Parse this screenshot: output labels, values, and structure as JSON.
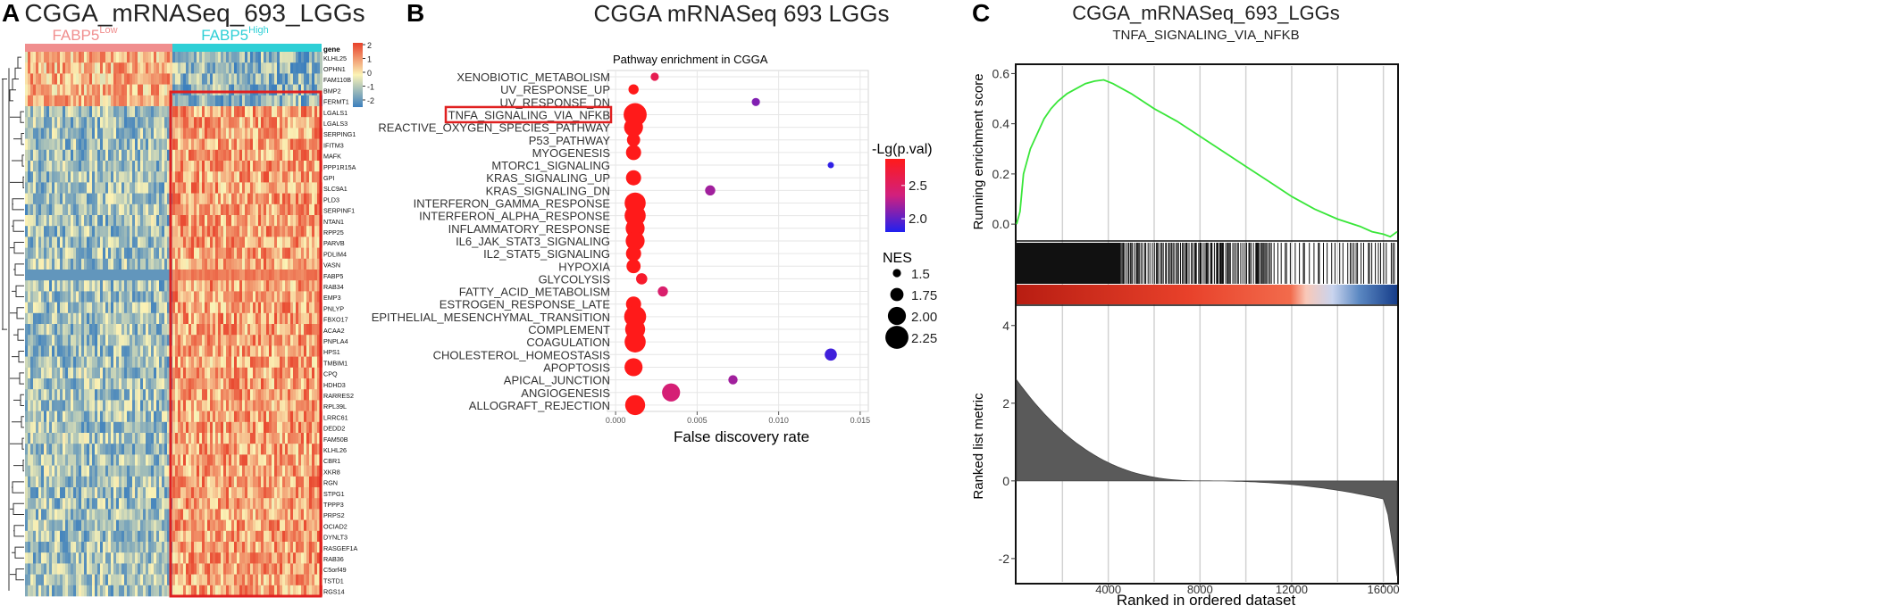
{
  "panels": {
    "A": {
      "letter": "A",
      "title": "CGGA_mRNASeq_693_LGGs",
      "groups": [
        {
          "label": "FABP5",
          "sup": "Low",
          "color": "#f08e8e"
        },
        {
          "label": "FABP5",
          "sup": "High",
          "color": "#2ecfd6"
        }
      ],
      "gene_header": "gene",
      "genes_top": [
        "KLHL25",
        "OPHN1",
        "FAM110B",
        "BMP2",
        "FERMT1"
      ],
      "genes_bottom": [
        "LGALS1",
        "LGALS3",
        "SERPING1",
        "IFITM3",
        "MAFK",
        "PPP1R15A",
        "GPI",
        "SLC9A1",
        "PLD3",
        "SERPINF1",
        "NTAN1",
        "RPP25",
        "PARVB",
        "PDLIM4",
        "VASN",
        "FABP5",
        "RAB34",
        "EMP3",
        "PNLYP",
        "FBXO17",
        "ACAA2",
        "PNPLA4",
        "HPS1",
        "TMBIM1",
        "CPQ",
        "HDHD3",
        "RARRES2",
        "RPL39L",
        "LRRC61",
        "DEDD2",
        "FAM50B",
        "KLHL26",
        "CBR1",
        "XKR8",
        "RGN",
        "STPG1",
        "TPPP3",
        "PRPS2",
        "OCIAD2",
        "DYNLT3",
        "RASGEF1A",
        "RAB36",
        "C5orf49",
        "TSTD1",
        "RGS14"
      ],
      "colorbar_ticks": [
        "2",
        "1",
        "0",
        "-1",
        "-2"
      ],
      "colors": {
        "high": "#e8412a",
        "mid": "#fbf3b6",
        "low": "#3c7fbd"
      }
    },
    "B": {
      "letter": "B",
      "title": "CGGA  mRNASeq  693  LGGs",
      "legend_color_title": "-Lg(p.val)",
      "legend_size_title": "NES",
      "highlight_color": "#e02020"
    },
    "C": {
      "letter": "C",
      "title": "CGGA_mRNASeq_693_LGGs",
      "subtitle": "TNFA_SIGNALING_VIA_NFKB",
      "ylabel_top": "Running enrichment score",
      "ylabel_bottom": "Ranked list metric",
      "xlabel": "Ranked in ordered dataset",
      "line_color": "#39e639"
    }
  },
  "chart_data": [
    {
      "panel": "B",
      "type": "scatter",
      "title": "Pathway enrichment in CGGA",
      "xlabel": "False discovery rate",
      "xlim": [
        -0.0005,
        0.0155
      ],
      "xticks": [
        "0.000",
        "0.005",
        "0.010",
        "0.015"
      ],
      "categories": [
        "XENOBIOTIC_METABOLISM",
        "UV_RESPONSE_UP",
        "UV_RESPONSE_DN",
        "TNFA_SIGNALING_VIA_NFKB",
        "REACTIVE_OXYGEN_SPECIES_PATHWAY",
        "P53_PATHWAY",
        "MYOGENESIS",
        "MTORC1_SIGNALING",
        "KRAS_SIGNALING_UP",
        "KRAS_SIGNALING_DN",
        "INTERFERON_GAMMA_RESPONSE",
        "INTERFERON_ALPHA_RESPONSE",
        "INFLAMMATORY_RESPONSE",
        "IL6_JAK_STAT3_SIGNALING",
        "IL2_STAT5_SIGNALING",
        "HYPOXIA",
        "GLYCOLYSIS",
        "FATTY_ACID_METABOLISM",
        "ESTROGEN_RESPONSE_LATE",
        "EPITHELIAL_MESENCHYMAL_TRANSITION",
        "COMPLEMENT",
        "COAGULATION",
        "CHOLESTEROL_HOMEOSTASIS",
        "APOPTOSIS",
        "APICAL_JUNCTION",
        "ANGIOGENESIS",
        "ALLOGRAFT_REJECTION"
      ],
      "highlighted": "TNFA_SIGNALING_VIA_NFKB",
      "fdr": [
        0.0024,
        0.0011,
        0.0086,
        0.0012,
        0.0011,
        0.0011,
        0.0011,
        0.0132,
        0.0011,
        0.0058,
        0.0012,
        0.0012,
        0.0012,
        0.0012,
        0.0011,
        0.0011,
        0.0016,
        0.0029,
        0.0011,
        0.0012,
        0.0012,
        0.0012,
        0.0132,
        0.0011,
        0.0072,
        0.0034,
        0.0012
      ],
      "neg_log_p": [
        2.6,
        2.9,
        2.1,
        2.9,
        2.9,
        2.9,
        2.9,
        1.85,
        2.9,
        2.2,
        2.9,
        2.9,
        2.9,
        2.9,
        2.9,
        2.9,
        2.8,
        2.45,
        2.9,
        2.9,
        2.9,
        2.9,
        1.9,
        2.9,
        2.2,
        2.4,
        2.9
      ],
      "nes": [
        1.5,
        1.6,
        1.5,
        2.25,
        2.05,
        1.75,
        1.85,
        1.4,
        1.85,
        1.6,
        2.15,
        2.15,
        2.05,
        2.05,
        1.85,
        1.8,
        1.65,
        1.6,
        1.85,
        2.2,
        2.1,
        2.15,
        1.7,
        2.0,
        1.55,
        2.0,
        2.1
      ],
      "color_legend_ticks": [
        2.0,
        2.5
      ],
      "color_range": [
        1.8,
        2.9
      ],
      "size_legend": [
        1.5,
        1.75,
        2.0,
        2.25
      ]
    },
    {
      "panel": "C",
      "type": "line",
      "title": "CGGA_mRNASeq_693_LGGs",
      "xlabel": "Ranked in ordered dataset",
      "xlim": [
        0,
        16600
      ],
      "xticks": [
        4000,
        8000,
        12000,
        16000
      ],
      "es_ylim": [
        -0.06,
        0.63
      ],
      "es_yticks": [
        "0.0",
        "0.2",
        "0.4",
        "0.6"
      ],
      "es_curve_x": [
        0,
        150,
        300,
        600,
        900,
        1200,
        1500,
        1800,
        2200,
        2600,
        3000,
        3400,
        3800,
        4200,
        5000,
        6000,
        7000,
        8000,
        9000,
        10000,
        11000,
        12000,
        13000,
        14000,
        15000,
        15500,
        16000,
        16300,
        16600
      ],
      "es_curve_y": [
        0.0,
        0.05,
        0.2,
        0.3,
        0.36,
        0.42,
        0.46,
        0.49,
        0.52,
        0.54,
        0.56,
        0.57,
        0.575,
        0.56,
        0.52,
        0.46,
        0.41,
        0.35,
        0.29,
        0.23,
        0.17,
        0.11,
        0.06,
        0.02,
        -0.01,
        -0.03,
        -0.04,
        -0.05,
        -0.03
      ],
      "metric_ylim": [
        -2.6,
        4.5
      ],
      "metric_yticks": [
        "4",
        "2",
        "0",
        "-2"
      ]
    }
  ]
}
